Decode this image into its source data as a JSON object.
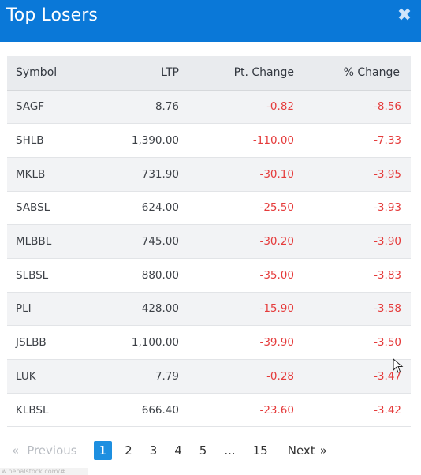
{
  "modal": {
    "title": "Top Losers",
    "close_symbol": "✖"
  },
  "table": {
    "headers": {
      "symbol": "Symbol",
      "ltp": "LTP",
      "pt_change": "Pt. Change",
      "pct_change": "% Change"
    },
    "rows": [
      {
        "symbol": "SAGF",
        "ltp": "8.76",
        "pt_change": "-0.82",
        "pct_change": "-8.56"
      },
      {
        "symbol": "SHLB",
        "ltp": "1,390.00",
        "pt_change": "-110.00",
        "pct_change": "-7.33"
      },
      {
        "symbol": "MKLB",
        "ltp": "731.90",
        "pt_change": "-30.10",
        "pct_change": "-3.95"
      },
      {
        "symbol": "SABSL",
        "ltp": "624.00",
        "pt_change": "-25.50",
        "pct_change": "-3.93"
      },
      {
        "symbol": "MLBBL",
        "ltp": "745.00",
        "pt_change": "-30.20",
        "pct_change": "-3.90"
      },
      {
        "symbol": "SLBSL",
        "ltp": "880.00",
        "pt_change": "-35.00",
        "pct_change": "-3.83"
      },
      {
        "symbol": "PLI",
        "ltp": "428.00",
        "pt_change": "-15.90",
        "pct_change": "-3.58"
      },
      {
        "symbol": "JSLBB",
        "ltp": "1,100.00",
        "pt_change": "-39.90",
        "pct_change": "-3.50"
      },
      {
        "symbol": "LUK",
        "ltp": "7.79",
        "pt_change": "-0.28",
        "pct_change": "-3.47"
      },
      {
        "symbol": "KLBSL",
        "ltp": "666.40",
        "pt_change": "-23.60",
        "pct_change": "-3.42"
      }
    ]
  },
  "pagination": {
    "prev_arrow": "«",
    "prev_label": "Previous",
    "pages": [
      "1",
      "2",
      "3",
      "4",
      "5",
      "...",
      "15"
    ],
    "active_page": "1",
    "next_label": "Next",
    "next_arrow": "»"
  },
  "status_bar": {
    "url_fragment": "w.nepalstock.com/#"
  },
  "colors": {
    "header_bg": "#0a78d8",
    "negative": "#e53b3b",
    "active_page": "#1d8fe0"
  }
}
